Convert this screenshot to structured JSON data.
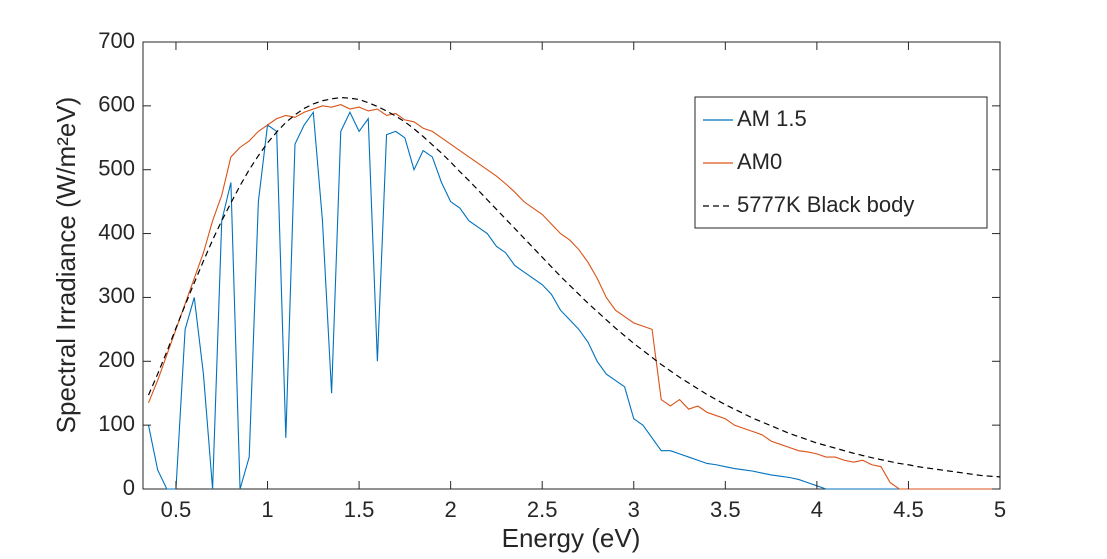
{
  "chart_data": {
    "type": "line",
    "xlabel": "Energy (eV)",
    "ylabel": "Spectral Irradiance (W/m²eV)",
    "xlim": [
      0.32,
      5
    ],
    "ylim": [
      0,
      700
    ],
    "xticks": [
      0.5,
      1,
      1.5,
      2,
      2.5,
      3,
      3.5,
      4,
      4.5,
      5
    ],
    "yticks": [
      0,
      100,
      200,
      300,
      400,
      500,
      600,
      700
    ],
    "legend": "upper right",
    "x": [
      0.35,
      0.4,
      0.45,
      0.5,
      0.55,
      0.6,
      0.65,
      0.7,
      0.75,
      0.8,
      0.85,
      0.9,
      0.95,
      1,
      1.05,
      1.1,
      1.15,
      1.2,
      1.25,
      1.3,
      1.35,
      1.4,
      1.45,
      1.5,
      1.55,
      1.6,
      1.65,
      1.7,
      1.75,
      1.8,
      1.85,
      1.9,
      1.95,
      2,
      2.05,
      2.1,
      2.15,
      2.2,
      2.25,
      2.3,
      2.35,
      2.4,
      2.45,
      2.5,
      2.55,
      2.6,
      2.65,
      2.7,
      2.75,
      2.8,
      2.85,
      2.9,
      2.95,
      3,
      3.05,
      3.1,
      3.15,
      3.2,
      3.25,
      3.3,
      3.35,
      3.4,
      3.45,
      3.5,
      3.55,
      3.6,
      3.65,
      3.7,
      3.75,
      3.8,
      3.85,
      3.9,
      3.95,
      4,
      4.05,
      4.1,
      4.15,
      4.2,
      4.25,
      4.3,
      4.35,
      4.4,
      4.45,
      4.5,
      4.55,
      4.6,
      4.65,
      4.7,
      4.75,
      4.8,
      4.85,
      4.9,
      4.95,
      5
    ],
    "series": [
      {
        "name": "AM 1.5",
        "color": "#0072bd",
        "dashed": false,
        "values": [
          100,
          30,
          0,
          0,
          250,
          300,
          180,
          0,
          420,
          480,
          0,
          50,
          450,
          570,
          560,
          80,
          540,
          570,
          590,
          420,
          150,
          560,
          590,
          560,
          580,
          200,
          555,
          560,
          550,
          500,
          530,
          520,
          480,
          450,
          440,
          420,
          410,
          400,
          380,
          370,
          350,
          340,
          330,
          320,
          305,
          280,
          265,
          250,
          230,
          200,
          180,
          170,
          160,
          110,
          100,
          80,
          60,
          60,
          55,
          50,
          45,
          40,
          38,
          35,
          32,
          30,
          28,
          25,
          22,
          20,
          18,
          15,
          10,
          5,
          0,
          0,
          0,
          0,
          0,
          0,
          0,
          0,
          0,
          0,
          0,
          0,
          0,
          0,
          0,
          0,
          0,
          0,
          0,
          0
        ]
      },
      {
        "name": "AM0",
        "color": "#d95319",
        "dashed": false,
        "values": [
          135,
          170,
          210,
          250,
          290,
          330,
          370,
          420,
          460,
          520,
          535,
          545,
          560,
          570,
          580,
          585,
          582,
          590,
          595,
          600,
          598,
          602,
          595,
          598,
          592,
          595,
          585,
          588,
          578,
          575,
          565,
          560,
          550,
          540,
          530,
          520,
          510,
          500,
          490,
          478,
          465,
          450,
          440,
          430,
          415,
          400,
          390,
          375,
          355,
          330,
          300,
          280,
          270,
          260,
          255,
          250,
          140,
          130,
          140,
          125,
          130,
          120,
          115,
          110,
          100,
          95,
          90,
          85,
          75,
          70,
          65,
          60,
          58,
          55,
          50,
          50,
          45,
          42,
          45,
          38,
          35,
          10,
          0,
          0,
          0,
          0,
          0,
          0,
          0,
          0,
          0,
          0,
          0,
          0
        ]
      },
      {
        "name": "5777K Black body",
        "color": "#000000",
        "dashed": true,
        "values": [
          147,
          180,
          215,
          252,
          288,
          323,
          357,
          390,
          420,
          448,
          475,
          500,
          522,
          542,
          559,
          574,
          586,
          596,
          603,
          608,
          611,
          613,
          612,
          610,
          605,
          599,
          592,
          584,
          575,
          564,
          552,
          539,
          526,
          512,
          497,
          483,
          468,
          453,
          438,
          423,
          408,
          393,
          378,
          363,
          348,
          333,
          319,
          305,
          291,
          278,
          265,
          252,
          240,
          228,
          217,
          206,
          195,
          185,
          175,
          166,
          157,
          148,
          140,
          132,
          125,
          118,
          111,
          105,
          99,
          93,
          87,
          82,
          77,
          72,
          68,
          64,
          60,
          56,
          52.5,
          49,
          46,
          43,
          40,
          38,
          35,
          33,
          31,
          29,
          27,
          25,
          23,
          21,
          20,
          19
        ]
      }
    ]
  }
}
